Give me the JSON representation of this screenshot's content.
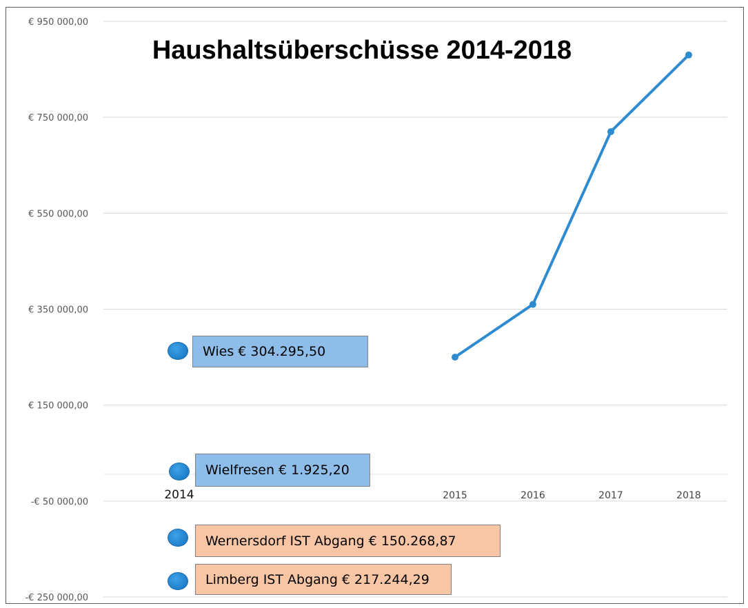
{
  "chart_data": {
    "type": "line",
    "title": "Haushaltsüberschüsse 2014-2018",
    "xlabel": "",
    "ylabel": "",
    "categories": [
      "2014",
      "2015",
      "2016",
      "2017",
      "2018"
    ],
    "series": [
      {
        "values": [
          null,
          250000,
          360000,
          720000,
          880000
        ]
      }
    ],
    "ylim": [
      -250000,
      950000
    ],
    "y_ticks": [
      950000,
      750000,
      550000,
      350000,
      150000,
      -50000,
      -250000
    ],
    "y_tick_labels": [
      "€ 950 000,00",
      "€ 750 000,00",
      "€ 550 000,00",
      "€ 350 000,00",
      "€ 150 000,00",
      "-€ 50 000,00",
      "-€ 250 000,00"
    ],
    "grid": true,
    "line_color": "#2e8bd0",
    "annotations": [
      {
        "text": "Wies € 304.295,50",
        "color": "#8dbde8"
      },
      {
        "text": "Wielfresen € 1.925,20",
        "color": "#8dbde8"
      },
      {
        "text": "Wernersdorf IST Abgang € 150.268,87",
        "color": "#f8c6a4"
      },
      {
        "text": "Limberg IST Abgang € 217.244,29",
        "color": "#f8c6a4"
      }
    ]
  }
}
